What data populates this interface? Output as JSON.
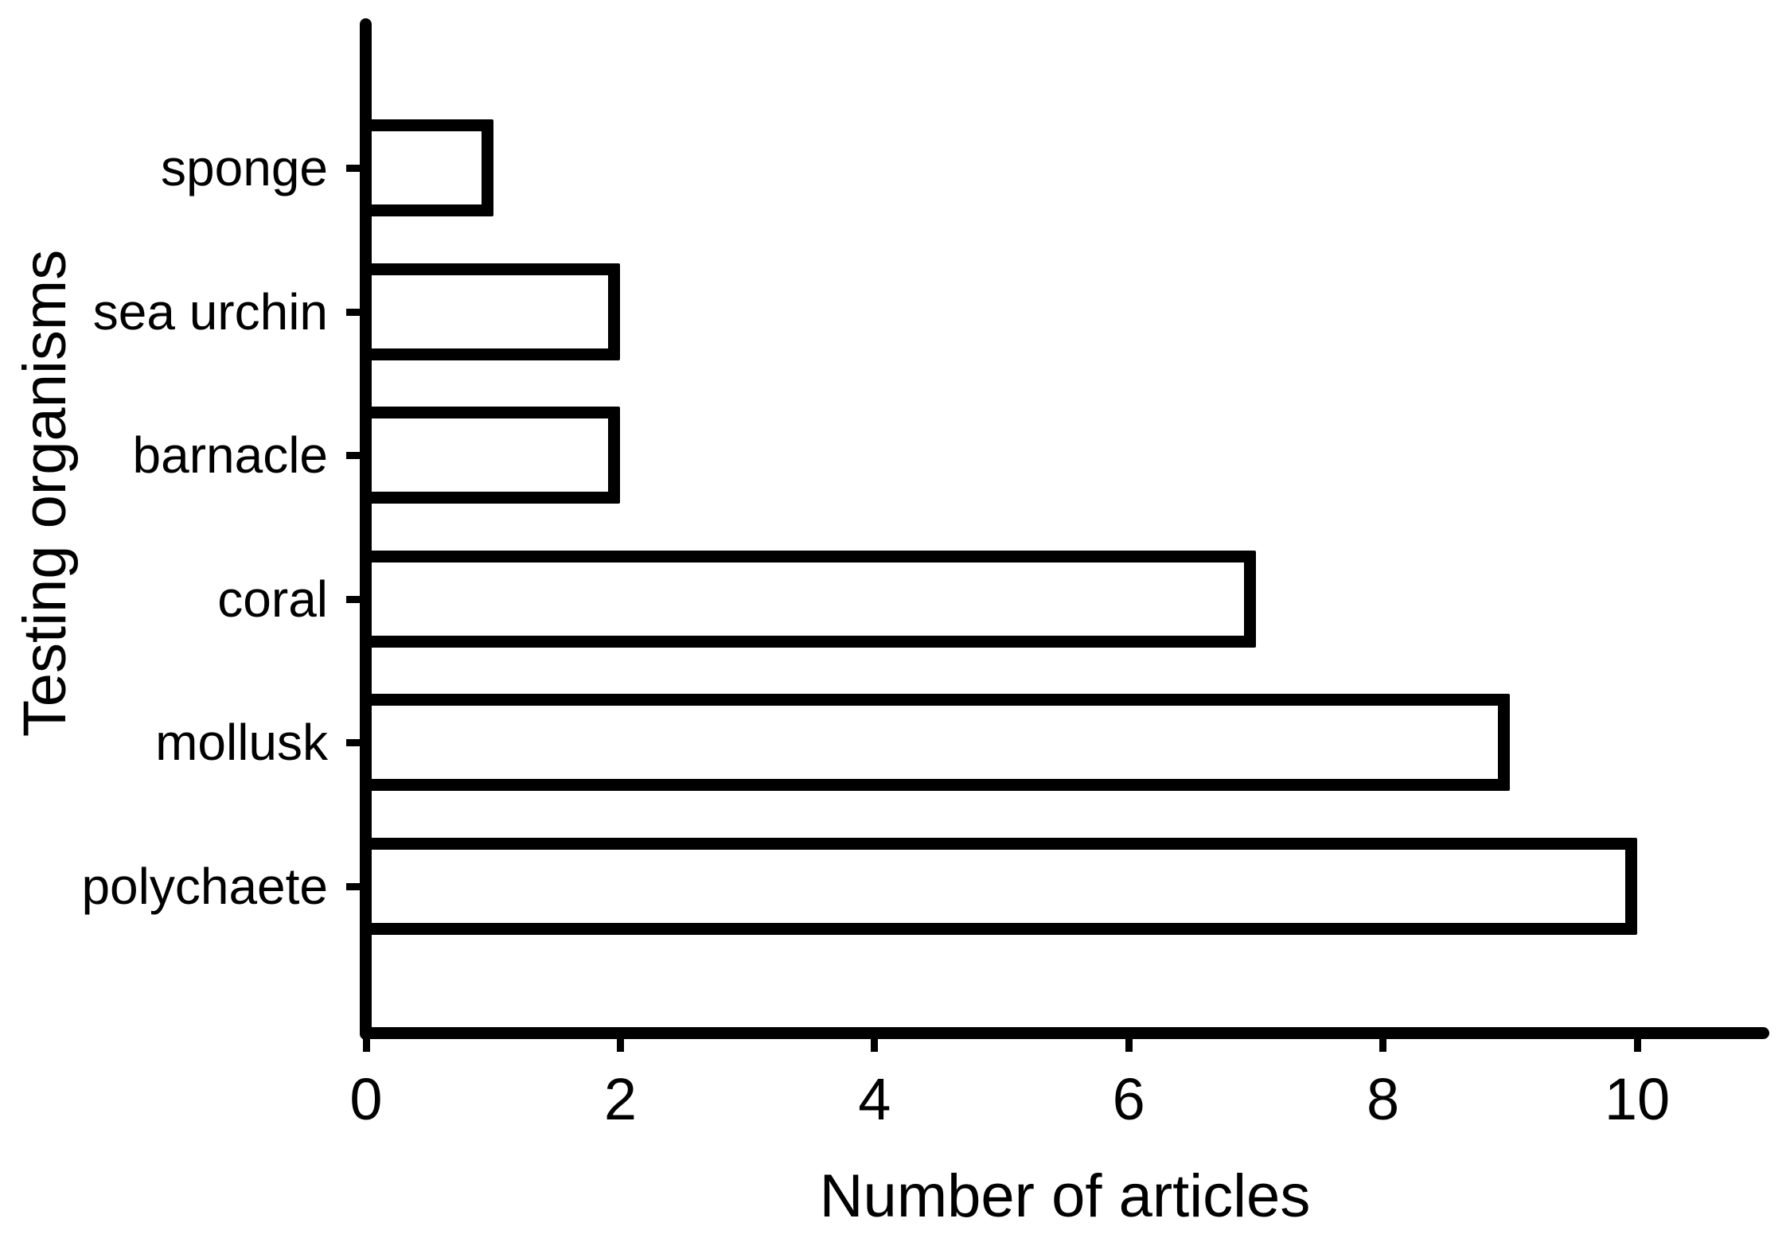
{
  "figure": {
    "background_color": "#ffffff",
    "foreground_color": "#000000",
    "bar_fill_color": "#ffffff",
    "bar_border_color": "#000000"
  },
  "chart_data": {
    "type": "bar",
    "orientation": "horizontal",
    "title": "",
    "xlabel": "Number of articles",
    "ylabel": "Testing organisms",
    "categories": [
      "sponge",
      "sea urchin",
      "barnacle",
      "coral",
      "mollusk",
      "polychaete"
    ],
    "values": [
      1,
      2,
      2,
      7,
      9,
      10
    ],
    "xticks": [
      0,
      2,
      4,
      6,
      8,
      10
    ],
    "xtick_labels": [
      "0",
      "2",
      "4",
      "6",
      "8",
      "10"
    ],
    "xlim": [
      0,
      11
    ],
    "grid": "off",
    "legend": "none",
    "bar_style": "white fill with thick black outline"
  }
}
